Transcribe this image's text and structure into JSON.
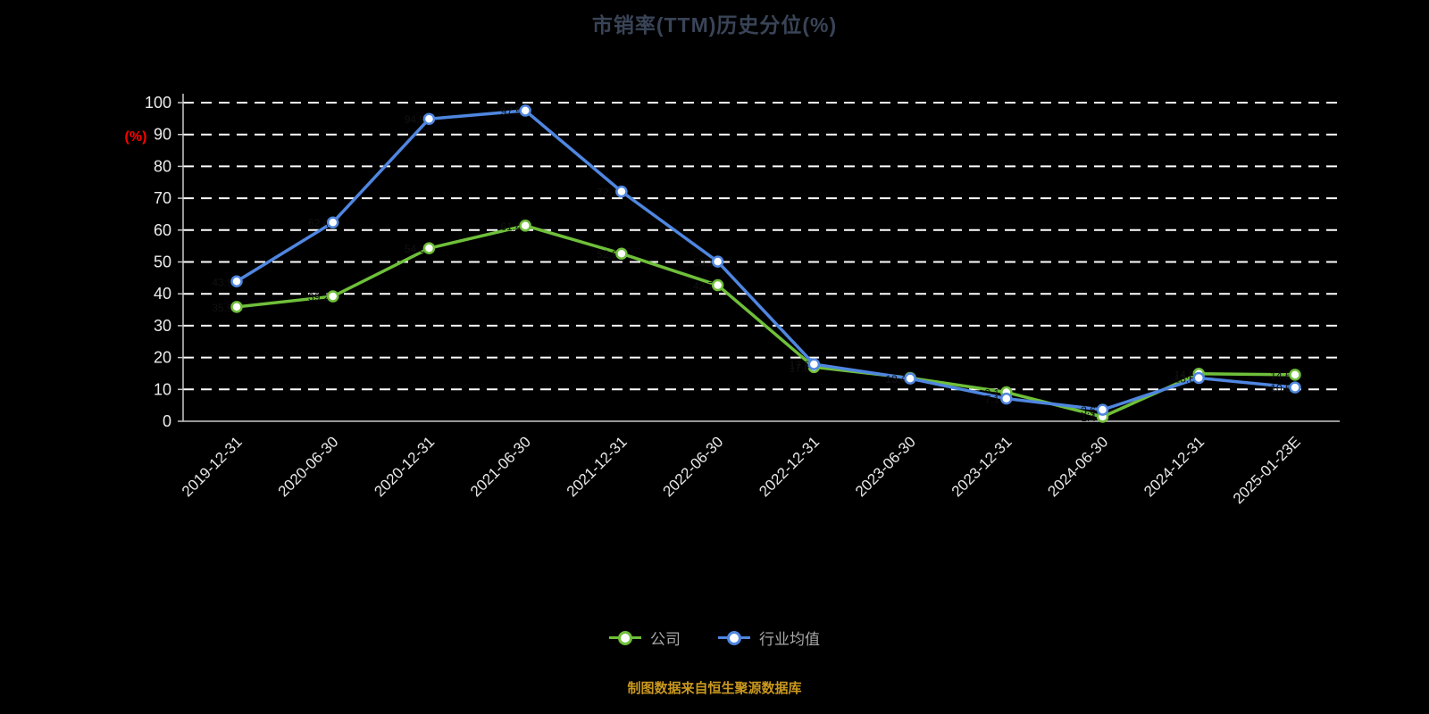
{
  "title": "市销率(TTM)历史分位(%)",
  "footer": "制图数据来自恒生聚源数据库",
  "legend": [
    {
      "label": "公司",
      "color": "#6fbf3a"
    },
    {
      "label": "行业均值",
      "color": "#4f86e0"
    }
  ],
  "chart_data": {
    "type": "line",
    "title": "市销率(TTM)历史分位(%)",
    "xlabel": "",
    "ylabel": "(%)",
    "ylabel_color": "#ff0000",
    "ylim": [
      0,
      100
    ],
    "y_tick_step": 10,
    "grid": "horizontal-dashed-white",
    "legend_position": "bottom",
    "background": "#000000",
    "categories": [
      "2019-12-31",
      "2020-06-30",
      "2020-12-31",
      "2021-06-30",
      "2021-12-31",
      "2022-06-30",
      "2022-12-31",
      "2023-06-30",
      "2023-12-31",
      "2024-06-30",
      "2024-12-31",
      "2025-01-23E"
    ],
    "series": [
      {
        "name": "公司",
        "key": "company",
        "color": "#6fbf3a",
        "marker_fill": "#ffffff",
        "values": [
          35.9,
          39.2,
          54.3,
          61.4,
          52.6,
          42.7,
          17.0,
          13.6,
          9.1,
          1.4,
          14.9,
          14.6
        ]
      },
      {
        "name": "行业均值",
        "key": "industry-average",
        "color": "#4f86e0",
        "marker_fill": "#ffffff",
        "values": [
          43.9,
          62.4,
          94.9,
          97.5,
          72.1,
          50.1,
          17.9,
          13.4,
          7.1,
          3.6,
          13.6,
          10.6
        ]
      }
    ]
  }
}
